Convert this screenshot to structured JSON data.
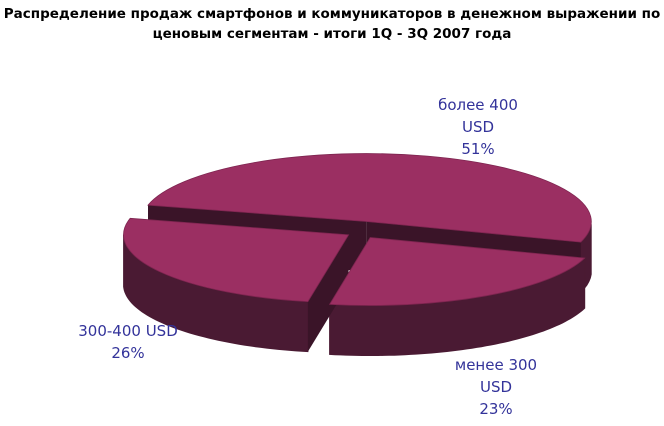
{
  "chart_data": {
    "type": "pie",
    "title_line1": "Распределение продаж смартфонов и коммуникаторов в денежном выражении по",
    "title_line2": "ценовым сегментам - итоги 1Q - 3Q 2007 года",
    "slices": [
      {
        "label_line1": "более 400",
        "label_line2": "USD",
        "value_text": "51%",
        "value": 51
      },
      {
        "label_line1": "менее 300",
        "label_line2": "USD",
        "value_text": "23%",
        "value": 23
      },
      {
        "label_line1": "300-400 USD",
        "label_line2": "",
        "value_text": "26%",
        "value": 26
      }
    ],
    "colors": {
      "top": "#9b2f62",
      "side": "#4a1a33",
      "label": "#33339a"
    },
    "exploded": true,
    "three_d": true
  }
}
